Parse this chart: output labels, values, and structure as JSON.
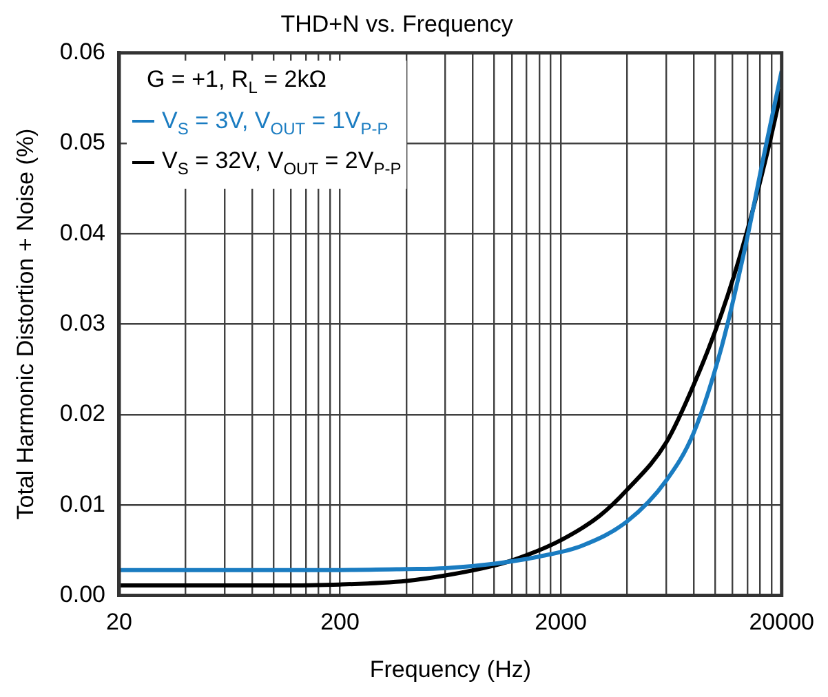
{
  "chart_data": {
    "type": "line",
    "title": "THD+N vs. Frequency",
    "xlabel": "Frequency (Hz)",
    "ylabel": "Total Harmonic Distortion + Noise (%)",
    "log": "x",
    "grid": true,
    "legend": "top left",
    "marker": "none",
    "line_style": "solid",
    "annotations": [
      "G = +1, R$_{L}$ = 2kΩ"
    ],
    "xlim": [
      20,
      20000
    ],
    "xticks": [
      20,
      {
        "value": 40,
        "label": null
      },
      {
        "value": 60,
        "label": null
      },
      {
        "value": 80,
        "label": null
      },
      {
        "value": 100,
        "label": null
      },
      {
        "value": 120,
        "label": null
      },
      {
        "value": 140,
        "label": null
      },
      {
        "value": 160,
        "label": null
      },
      {
        "value": 180,
        "label": null
      },
      200,
      {
        "value": 400,
        "label": null
      },
      {
        "value": 600,
        "label": null
      },
      {
        "value": 800,
        "label": null
      },
      {
        "value": 1000,
        "label": null
      },
      {
        "value": 1200,
        "label": null
      },
      {
        "value": 1400,
        "label": null
      },
      {
        "value": 1600,
        "label": null
      },
      {
        "value": 1800,
        "label": null
      },
      2000,
      {
        "value": 4000,
        "label": null
      },
      {
        "value": 6000,
        "label": null
      },
      {
        "value": 8000,
        "label": null
      },
      {
        "value": 10000,
        "label": null
      },
      {
        "value": 12000,
        "label": null
      },
      {
        "value": 14000,
        "label": null
      },
      {
        "value": 16000,
        "label": null
      },
      {
        "value": 18000,
        "label": null
      },
      20000
    ],
    "ylim": [
      0,
      0.06
    ],
    "yticks": [
      {
        "value": 0,
        "label": "0.00"
      },
      0.01,
      0.02,
      0.03,
      0.04,
      0.05,
      0.06
    ],
    "series": [
      {
        "name": "V$_{S}$ = 3V, V$_{OUT}$ = 1V$_{P-P}$",
        "color": "#1a7cc1",
        "x": [
          20,
          100,
          200,
          400,
          600,
          1000,
          1600,
          2500,
          4000,
          6000,
          8000,
          10700,
          13700,
          16600,
          20000
        ],
        "values": [
          0.0028,
          0.0028,
          0.0028,
          0.0029,
          0.003,
          0.0035,
          0.0043,
          0.0055,
          0.0082,
          0.0127,
          0.018,
          0.0275,
          0.0386,
          0.0486,
          0.058
        ]
      },
      {
        "name": "V$_{S}$ = 32V, V$_{OUT}$ = 2V$_{P-P}$",
        "color": "#000000",
        "x": [
          20,
          50,
          100,
          200,
          400,
          600,
          1000,
          1250,
          2000,
          3000,
          4000,
          6000,
          8000,
          10700,
          13700,
          17500,
          20000
        ],
        "values": [
          0.0011,
          0.0011,
          0.0011,
          0.0012,
          0.0016,
          0.0022,
          0.0033,
          0.004,
          0.0061,
          0.0088,
          0.0117,
          0.0169,
          0.0233,
          0.0312,
          0.0396,
          0.0497,
          0.056
        ]
      }
    ]
  }
}
